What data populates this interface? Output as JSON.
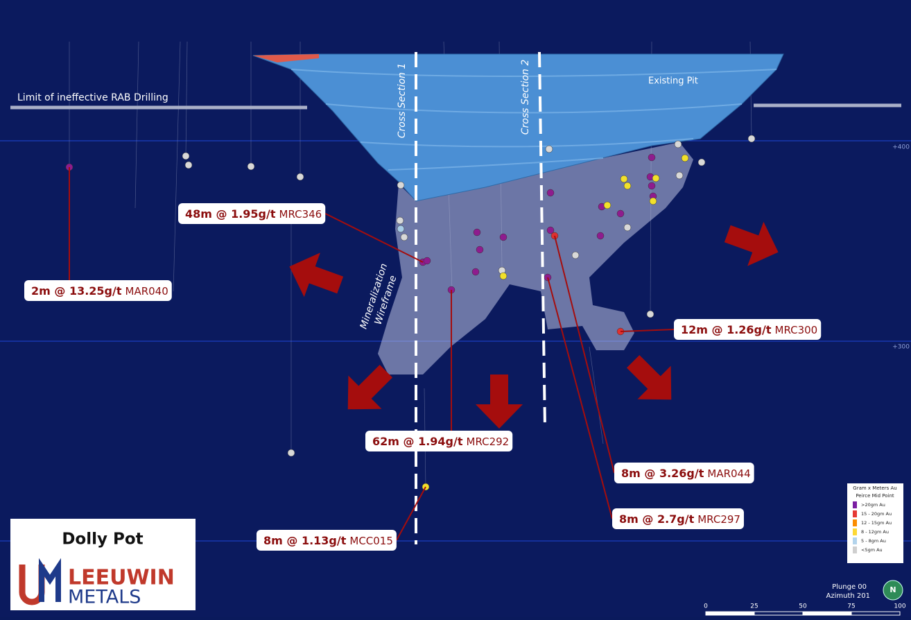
{
  "labels": {
    "rab_limit": "Limit of ineffective RAB Drilling",
    "existing_pit": "Existing Pit",
    "cross_section_1": "Cross Section 1",
    "cross_section_2": "Cross Section 2",
    "wireframe": [
      "Mineralization",
      "Wireframe"
    ]
  },
  "elevations": [
    "+400",
    "+300"
  ],
  "intercepts": [
    {
      "grade": "48m @ 1.95g/t",
      "hole": "MRC346"
    },
    {
      "grade": "2m @ 13.25g/t",
      "hole": "MAR040"
    },
    {
      "grade": "12m @ 1.26g/t",
      "hole": "MRC300"
    },
    {
      "grade": "62m @ 1.94g/t",
      "hole": "MRC292"
    },
    {
      "grade": "8m @ 3.26g/t",
      "hole": "MAR044"
    },
    {
      "grade": "8m @ 2.7g/t",
      "hole": "MRC297"
    },
    {
      "grade": "8m @ 1.13g/t",
      "hole": "MCC015"
    }
  ],
  "legend": {
    "title": "Gram x Meters Au",
    "subtitle": "Peirce Mid Point",
    "items": [
      {
        "label": ">20gm Au",
        "color": "#7b1fa2"
      },
      {
        "label": "15 - 20gm Au",
        "color": "#e53935"
      },
      {
        "label": "12 - 15gm Au",
        "color": "#fb8c00"
      },
      {
        "label": "8 - 12gm Au",
        "color": "#fdd835"
      },
      {
        "label": "5 - 8gm Au",
        "color": "#b3d4ec"
      },
      {
        "label": "<5gm Au",
        "color": "#cfcfcf"
      }
    ]
  },
  "logo": {
    "project": "Dolly Pot",
    "company": "LEEUWIN",
    "suffix": "METALS"
  },
  "view": {
    "plunge": "Plunge 00",
    "azimuth": "Azimuth 201",
    "north": "N"
  },
  "scale_bar": [
    "0",
    "25",
    "50",
    "75",
    "100"
  ]
}
